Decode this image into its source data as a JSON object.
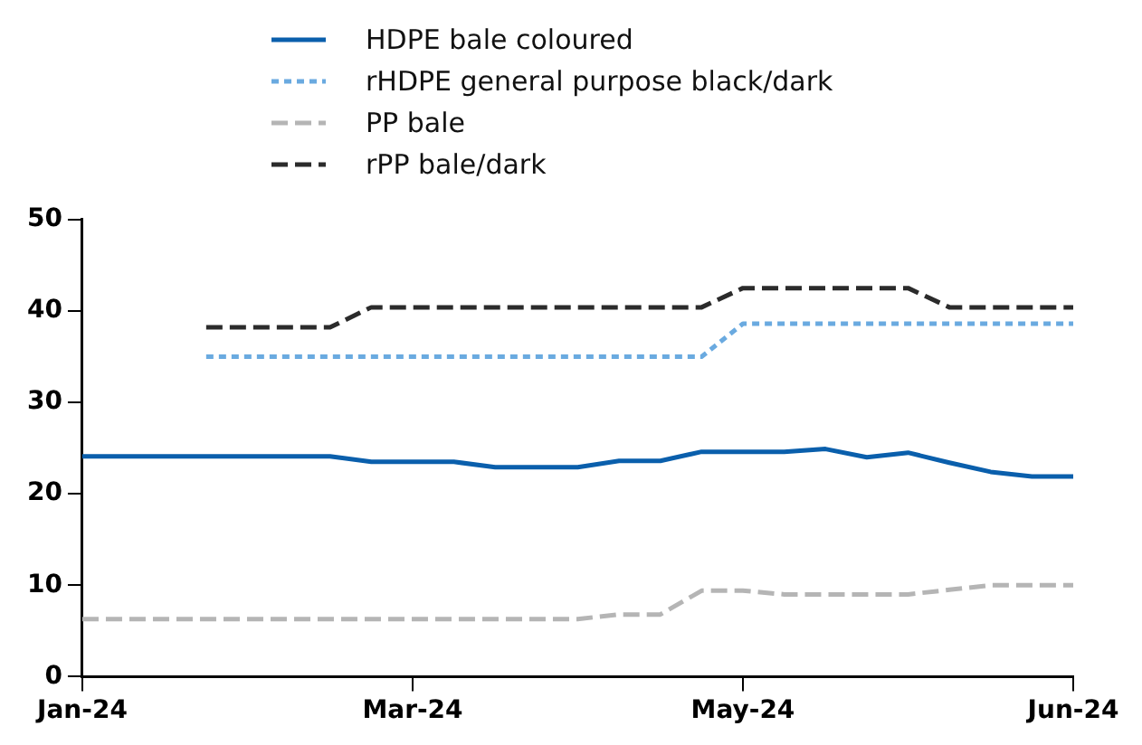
{
  "chart_data": {
    "type": "line",
    "categories": [
      "Jan-24",
      null,
      null,
      null,
      null,
      null,
      null,
      null,
      "Mar-24",
      null,
      null,
      null,
      null,
      null,
      null,
      null,
      "May-24",
      null,
      null,
      null,
      null,
      null,
      null,
      null,
      "Jun-24"
    ],
    "ylim": [
      0,
      50
    ],
    "yticks": [
      0,
      10,
      20,
      30,
      40,
      50
    ],
    "grid": false,
    "legend": "top left",
    "marker": "none",
    "series": [
      {
        "name": "HDPE bale coloured",
        "color": "#0a5fac",
        "line_style": "solid",
        "values": [
          24.1,
          24.1,
          24.1,
          24.1,
          24.1,
          24.1,
          24.1,
          23.5,
          23.5,
          23.5,
          22.9,
          22.9,
          22.9,
          23.6,
          23.6,
          24.6,
          24.6,
          24.6,
          24.9,
          24.0,
          24.5,
          23.4,
          22.4,
          21.9,
          21.9
        ]
      },
      {
        "name": "rHDPE general purpose black/dark",
        "color": "#6aaae0",
        "line_style": "dotted",
        "values": [
          null,
          null,
          null,
          35.0,
          35.0,
          35.0,
          35.0,
          35.0,
          35.0,
          35.0,
          35.0,
          35.0,
          35.0,
          35.0,
          35.0,
          35.0,
          38.6,
          38.6,
          38.6,
          38.6,
          38.6,
          38.6,
          38.6,
          38.6,
          38.6
        ]
      },
      {
        "name": "PP bale",
        "color": "#b5b5b5",
        "line_style": "dashed",
        "values": [
          6.3,
          6.3,
          6.3,
          6.3,
          6.3,
          6.3,
          6.3,
          6.3,
          6.3,
          6.3,
          6.3,
          6.3,
          6.3,
          6.8,
          6.8,
          9.4,
          9.4,
          9.0,
          9.0,
          9.0,
          9.0,
          9.5,
          10.0,
          10.0,
          10.0
        ]
      },
      {
        "name": "rPP bale/dark",
        "color": "#2b2b2b",
        "line_style": "dashed",
        "values": [
          null,
          null,
          null,
          38.2,
          38.2,
          38.2,
          38.2,
          40.4,
          40.4,
          40.4,
          40.4,
          40.4,
          40.4,
          40.4,
          40.4,
          40.4,
          42.5,
          42.5,
          42.5,
          42.5,
          42.5,
          40.4,
          40.4,
          40.4,
          40.4
        ]
      }
    ]
  }
}
